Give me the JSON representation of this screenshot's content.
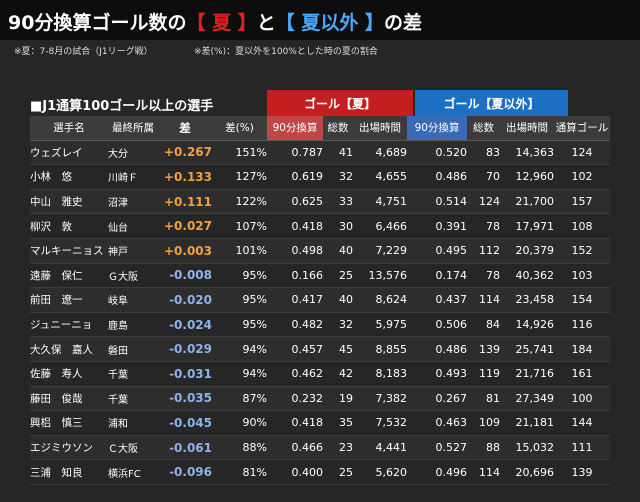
{
  "title": {
    "prefix": "90分換算ゴール数の",
    "summer": "【 夏 】",
    "mid": "と",
    "other": "【 夏以外 】",
    "suffix": "の差"
  },
  "notes": {
    "left": "※夏：7-8月の試合（J1リーグ戦）",
    "right": "※差(%)：夏以外を100%とした時の夏の割合"
  },
  "section_title": "■J1通算100ゴール以上の選手",
  "groups": {
    "summer": "ゴール【夏】",
    "other": "ゴール【夏以外】"
  },
  "columns": {
    "name": "選手名",
    "club": "最終所属",
    "diff": "差",
    "pct": "差(%)",
    "s_per90": "90分換算",
    "s_goals": "総数",
    "s_minutes": "出場時間",
    "o_per90": "90分換算",
    "o_goals": "総数",
    "o_minutes": "出場時間",
    "career": "通算ゴール"
  },
  "colors": {
    "summer": "#c41f1f",
    "other": "#1d6fc4",
    "diff_positive": "#f0a040",
    "diff_negative": "#8fb2e8"
  },
  "rows": [
    {
      "name": "ウェズレイ",
      "club": "大分",
      "diff": "+0.267",
      "pct": "151%",
      "s_per90": "0.787",
      "s_goals": "41",
      "s_minutes": "4,689",
      "o_per90": "0.520",
      "o_goals": "83",
      "o_minutes": "14,363",
      "career": "124"
    },
    {
      "name": "小林　悠",
      "club": "川崎Ｆ",
      "diff": "+0.133",
      "pct": "127%",
      "s_per90": "0.619",
      "s_goals": "32",
      "s_minutes": "4,655",
      "o_per90": "0.486",
      "o_goals": "70",
      "o_minutes": "12,960",
      "career": "102"
    },
    {
      "name": "中山　雅史",
      "club": "沼津",
      "diff": "+0.111",
      "pct": "122%",
      "s_per90": "0.625",
      "s_goals": "33",
      "s_minutes": "4,751",
      "o_per90": "0.514",
      "o_goals": "124",
      "o_minutes": "21,700",
      "career": "157"
    },
    {
      "name": "柳沢　敦",
      "club": "仙台",
      "diff": "+0.027",
      "pct": "107%",
      "s_per90": "0.418",
      "s_goals": "30",
      "s_minutes": "6,466",
      "o_per90": "0.391",
      "o_goals": "78",
      "o_minutes": "17,971",
      "career": "108"
    },
    {
      "name": "マルキーニョス",
      "club": "神戸",
      "diff": "+0.003",
      "pct": "101%",
      "s_per90": "0.498",
      "s_goals": "40",
      "s_minutes": "7,229",
      "o_per90": "0.495",
      "o_goals": "112",
      "o_minutes": "20,379",
      "career": "152"
    },
    {
      "name": "遠藤　保仁",
      "club": "Ｇ大阪",
      "diff": "-0.008",
      "pct": "95%",
      "s_per90": "0.166",
      "s_goals": "25",
      "s_minutes": "13,576",
      "o_per90": "0.174",
      "o_goals": "78",
      "o_minutes": "40,362",
      "career": "103"
    },
    {
      "name": "前田　遼一",
      "club": "岐阜",
      "diff": "-0.020",
      "pct": "95%",
      "s_per90": "0.417",
      "s_goals": "40",
      "s_minutes": "8,624",
      "o_per90": "0.437",
      "o_goals": "114",
      "o_minutes": "23,458",
      "career": "154"
    },
    {
      "name": "ジュニーニョ",
      "club": "鹿島",
      "diff": "-0.024",
      "pct": "95%",
      "s_per90": "0.482",
      "s_goals": "32",
      "s_minutes": "5,975",
      "o_per90": "0.506",
      "o_goals": "84",
      "o_minutes": "14,926",
      "career": "116"
    },
    {
      "name": "大久保　嘉人",
      "club": "磐田",
      "diff": "-0.029",
      "pct": "94%",
      "s_per90": "0.457",
      "s_goals": "45",
      "s_minutes": "8,855",
      "o_per90": "0.486",
      "o_goals": "139",
      "o_minutes": "25,741",
      "career": "184"
    },
    {
      "name": "佐藤　寿人",
      "club": "千葉",
      "diff": "-0.031",
      "pct": "94%",
      "s_per90": "0.462",
      "s_goals": "42",
      "s_minutes": "8,183",
      "o_per90": "0.493",
      "o_goals": "119",
      "o_minutes": "21,716",
      "career": "161"
    },
    {
      "name": "藤田　俊哉",
      "club": "千葉",
      "diff": "-0.035",
      "pct": "87%",
      "s_per90": "0.232",
      "s_goals": "19",
      "s_minutes": "7,382",
      "o_per90": "0.267",
      "o_goals": "81",
      "o_minutes": "27,349",
      "career": "100"
    },
    {
      "name": "興梠　慎三",
      "club": "浦和",
      "diff": "-0.045",
      "pct": "90%",
      "s_per90": "0.418",
      "s_goals": "35",
      "s_minutes": "7,532",
      "o_per90": "0.463",
      "o_goals": "109",
      "o_minutes": "21,181",
      "career": "144"
    },
    {
      "name": "エジミウソン",
      "club": "Ｃ大阪",
      "diff": "-0.061",
      "pct": "88%",
      "s_per90": "0.466",
      "s_goals": "23",
      "s_minutes": "4,441",
      "o_per90": "0.527",
      "o_goals": "88",
      "o_minutes": "15,032",
      "career": "111"
    },
    {
      "name": "三浦　知良",
      "club": "横浜FC",
      "diff": "-0.096",
      "pct": "81%",
      "s_per90": "0.400",
      "s_goals": "25",
      "s_minutes": "5,620",
      "o_per90": "0.496",
      "o_goals": "114",
      "o_minutes": "20,696",
      "career": "139"
    }
  ]
}
